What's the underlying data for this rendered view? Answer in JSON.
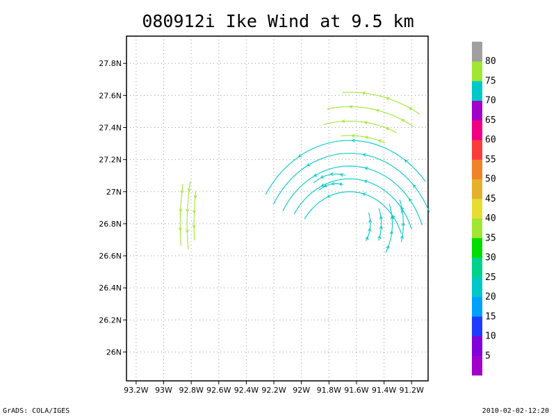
{
  "title": "080912i Ike Wind at 9.5 km",
  "footer_left": "GrADS: COLA/IGES",
  "footer_right": "2010-02-02-12:20",
  "chart_data": {
    "type": "vector-field",
    "x_ticks": [
      "93.2W",
      "93W",
      "92.8W",
      "92.6W",
      "92.4W",
      "92.2W",
      "92W",
      "91.8W",
      "91.6W",
      "91.4W",
      "91.2W"
    ],
    "y_ticks": [
      "27.8N",
      "27.6N",
      "27.4N",
      "27.2N",
      "27N",
      "26.8N",
      "26.6N",
      "26.4N",
      "26.2N",
      "26N"
    ],
    "xlim": [
      -93.27,
      -91.08
    ],
    "ylim": [
      25.82,
      27.97
    ],
    "grid": true,
    "colorbar": {
      "labels": [
        "5",
        "10",
        "15",
        "20",
        "25",
        "30",
        "35",
        "40",
        "45",
        "50",
        "55",
        "60",
        "65",
        "70",
        "75",
        "80"
      ],
      "colors": [
        "#a000c8",
        "#8200dc",
        "#1e3cff",
        "#00a0ff",
        "#00c8c8",
        "#00d28c",
        "#00dc00",
        "#a0e632",
        "#e6dc32",
        "#e6af2d",
        "#f08228",
        "#fa3c3c",
        "#f00082",
        "#a000c8",
        "#00c8c8",
        "#a0e632",
        "#a0a0a0"
      ]
    },
    "vector_groups": [
      {
        "color": "#a0e632",
        "arcs": [
          {
            "cx": -91.65,
            "cy": 26.6,
            "r": 0.75,
            "a0": 95,
            "a1": 70
          },
          {
            "cx": -91.65,
            "cy": 26.6,
            "r": 0.84,
            "a0": 103,
            "a1": 66
          },
          {
            "cx": -91.65,
            "cy": 26.6,
            "r": 0.93,
            "a0": 100,
            "a1": 60
          },
          {
            "cx": -91.65,
            "cy": 26.6,
            "r": 1.02,
            "a0": 93,
            "a1": 60
          },
          {
            "cx": -91.3,
            "cy": 26.8,
            "r": 1.48,
            "a0": 184,
            "a1": 172
          },
          {
            "cx": -91.3,
            "cy": 26.8,
            "r": 1.53,
            "a0": 186,
            "a1": 170
          },
          {
            "cx": -91.3,
            "cy": 26.8,
            "r": 1.58,
            "a0": 185,
            "a1": 171
          }
        ]
      },
      {
        "color": "#00c8c8",
        "arcs": [
          {
            "cx": -91.65,
            "cy": 26.6,
            "r": 0.4,
            "a0": 145,
            "a1": 20
          },
          {
            "cx": -91.65,
            "cy": 26.6,
            "r": 0.48,
            "a0": 147,
            "a1": 20
          },
          {
            "cx": -91.65,
            "cy": 26.6,
            "r": 0.56,
            "a0": 150,
            "a1": 20
          },
          {
            "cx": -91.65,
            "cy": 26.6,
            "r": 0.64,
            "a0": 150,
            "a1": 25
          },
          {
            "cx": -91.65,
            "cy": 26.6,
            "r": 0.72,
            "a0": 148,
            "a1": 40
          },
          {
            "cx": -91.75,
            "cy": 26.85,
            "r": 0.2,
            "a0": 128,
            "a1": 75
          },
          {
            "cx": -91.75,
            "cy": 26.85,
            "r": 0.26,
            "a0": 128,
            "a1": 75
          },
          {
            "cx": -91.7,
            "cy": 26.8,
            "r": 0.2,
            "a0": 20,
            "a1": -32
          },
          {
            "cx": -91.7,
            "cy": 26.8,
            "r": 0.28,
            "a0": 20,
            "a1": -22
          },
          {
            "cx": -91.7,
            "cy": 26.8,
            "r": 0.36,
            "a0": 20,
            "a1": -30
          },
          {
            "cx": -91.7,
            "cy": 26.8,
            "r": 0.44,
            "a0": 20,
            "a1": -15
          }
        ]
      }
    ]
  }
}
